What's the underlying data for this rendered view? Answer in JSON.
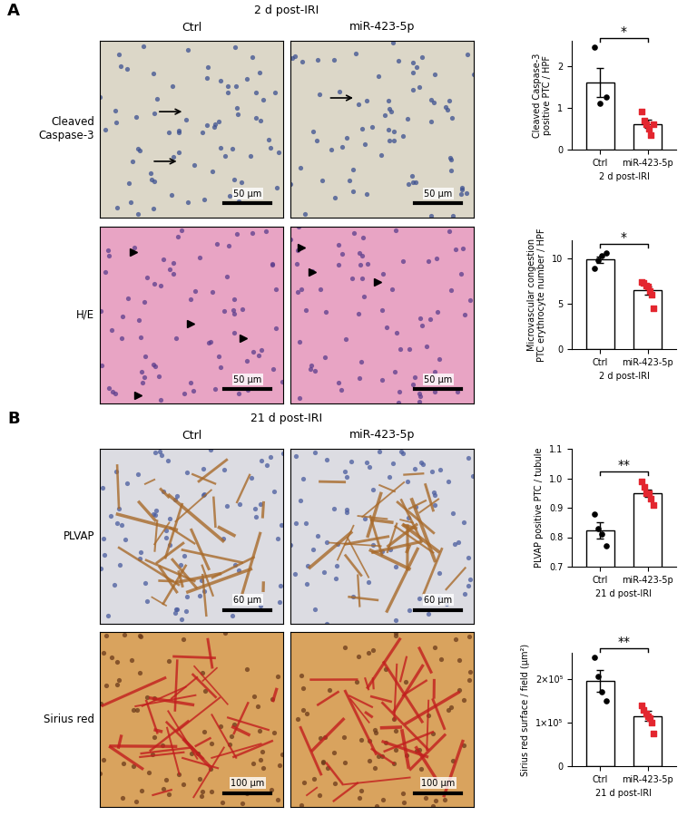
{
  "figure": {
    "panels": [
      {
        "label": "A",
        "header": "2 d post-IRI",
        "columns": [
          "Ctrl",
          "miR-423-5p"
        ],
        "rows": [
          {
            "label": "Cleaved Caspase-3",
            "scale_bar": "50 µm"
          },
          {
            "label": "H/E",
            "scale_bar": "50 µm"
          }
        ]
      },
      {
        "label": "B",
        "header": "21 d post-IRI",
        "columns": [
          "Ctrl",
          "miR-423-5p"
        ],
        "rows": [
          {
            "label": "PLVAP",
            "scale_bar": "60 µm"
          },
          {
            "label": "Sirius red",
            "scale_bar": "100 µm"
          }
        ]
      }
    ]
  },
  "chart_data": [
    {
      "type": "bar",
      "ylabel": "Cleaved Caspase-3\npositive PTC / HPF",
      "xlabel": "2 d post-IRI",
      "categories": [
        "Ctrl",
        "miR-423-5p"
      ],
      "values": [
        1.6,
        0.61
      ],
      "errors": [
        0.35,
        0.1
      ],
      "points": [
        [
          2.45,
          1.1,
          1.25
        ],
        [
          0.9,
          0.7,
          0.6,
          0.5,
          0.35,
          0.6
        ]
      ],
      "color": "#ffffff",
      "point_colors": [
        "#000000",
        "#e3262f"
      ],
      "significance": "*",
      "ylim": [
        0,
        2.6
      ],
      "yticks": [
        0,
        1,
        2
      ]
    },
    {
      "type": "bar",
      "ylabel": "Microvascular congestion\nPTC erythrocyte number / HPF",
      "xlabel": "2 d post-IRI",
      "categories": [
        "Ctrl",
        "miR-423-5p"
      ],
      "values": [
        9.9,
        6.5
      ],
      "errors": [
        0.35,
        0.45
      ],
      "points": [
        [
          8.9,
          9.8,
          10.3,
          10.6
        ],
        [
          7.4,
          7.3,
          7.0,
          6.9,
          6.4,
          6.0,
          4.5
        ]
      ],
      "color": "#ffffff",
      "point_colors": [
        "#000000",
        "#e3262f"
      ],
      "significance": "*",
      "ylim": [
        0,
        12
      ],
      "yticks": [
        0,
        5,
        10
      ]
    },
    {
      "type": "bar",
      "ylabel": "PLVAP positive PTC / tubule",
      "xlabel": "21 d post-IRI",
      "categories": [
        "Ctrl",
        "miR-423-5p"
      ],
      "values": [
        0.822,
        0.95
      ],
      "errors": [
        0.028,
        0.012
      ],
      "points": [
        [
          0.88,
          0.83,
          0.81,
          0.77
        ],
        [
          0.99,
          0.97,
          0.95,
          0.95,
          0.93,
          0.91
        ]
      ],
      "color": "#ffffff",
      "point_colors": [
        "#000000",
        "#e3262f"
      ],
      "significance": "**",
      "ylim": [
        0.7,
        1.1
      ],
      "yticks": [
        0.7,
        0.8,
        0.9,
        1.0,
        1.1
      ]
    },
    {
      "type": "bar",
      "ylabel": "Sirius red surface / field (µm²)",
      "xlabel": "21 d post-IRI",
      "categories": [
        "Ctrl",
        "miR-423-5p"
      ],
      "values": [
        195000,
        115000
      ],
      "errors": [
        25000,
        11000
      ],
      "points": [
        [
          250000,
          205000,
          170000,
          150000
        ],
        [
          140000,
          130000,
          120000,
          115000,
          110000,
          100000,
          75000
        ]
      ],
      "color": "#ffffff",
      "point_colors": [
        "#000000",
        "#e3262f"
      ],
      "significance": "**",
      "ylim": [
        0,
        260000
      ],
      "yticks": [
        0,
        {
          "value": 100000,
          "label": "1×10⁵"
        },
        {
          "value": 200000,
          "label": "2×10⁵"
        }
      ]
    }
  ]
}
